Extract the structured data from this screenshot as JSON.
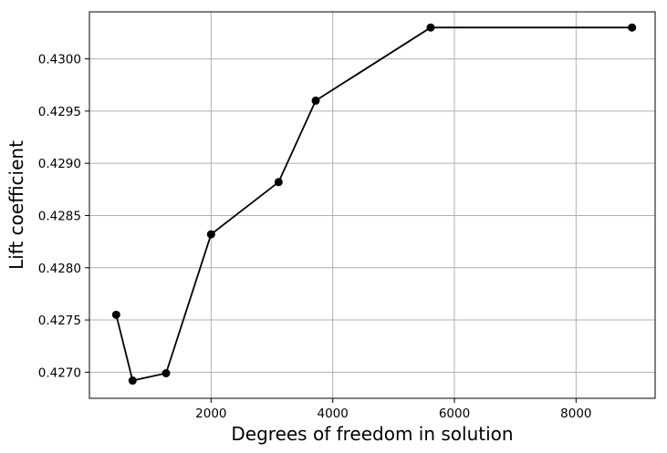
{
  "chart_data": {
    "type": "line",
    "title": "",
    "xlabel": "Degrees of freedom in solution",
    "ylabel": "Lift coefficient",
    "xlim": [
      0,
      9300
    ],
    "ylim": [
      0.42675,
      0.43045
    ],
    "grid": true,
    "x_ticks": [
      2000,
      4000,
      6000,
      8000
    ],
    "x_tick_labels": [
      "2000",
      "4000",
      "6000",
      "8000"
    ],
    "y_ticks": [
      0.427,
      0.4275,
      0.428,
      0.4285,
      0.429,
      0.4295,
      0.43
    ],
    "y_tick_labels": [
      "0.4270",
      "0.4275",
      "0.4280",
      "0.4285",
      "0.4290",
      "0.4295",
      "0.4300"
    ],
    "series": [
      {
        "x": [
          440,
          710,
          1260,
          2000,
          3110,
          3720,
          5610,
          8920
        ],
        "y": [
          0.42755,
          0.42692,
          0.42699,
          0.42832,
          0.42882,
          0.4296,
          0.4303,
          0.4303
        ],
        "color": "#000000",
        "marker": "circle"
      }
    ]
  }
}
